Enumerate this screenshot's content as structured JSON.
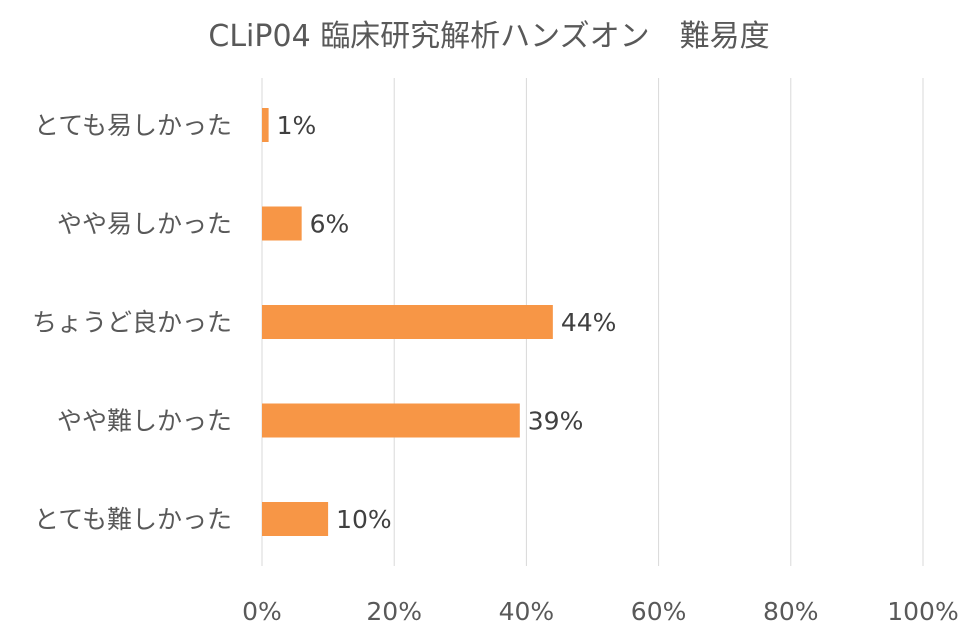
{
  "chart_data": {
    "type": "bar",
    "orientation": "horizontal",
    "title": "CLiP04 臨床研究解析ハンズオン　難易度",
    "xlabel": "",
    "ylabel": "",
    "categories": [
      "とても易しかった",
      "やや易しかった",
      "ちょうど良かった",
      "やや難しかった",
      "とても難しかった"
    ],
    "values": [
      1,
      6,
      44,
      39,
      10
    ],
    "data_labels": [
      "1%",
      "6%",
      "44%",
      "39%",
      "10%"
    ],
    "x_ticks": [
      0,
      20,
      40,
      60,
      80,
      100
    ],
    "x_tick_labels": [
      "0%",
      "20%",
      "40%",
      "60%",
      "80%",
      "100%"
    ],
    "xlim": [
      0,
      100
    ],
    "grid": true,
    "legend": "none",
    "bar_color": "#f79646"
  }
}
